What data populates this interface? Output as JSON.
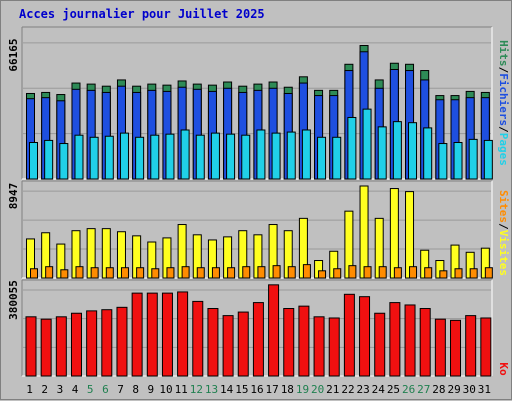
{
  "title": "Acces journalier pour Juillet 2025",
  "colors": {
    "hits": "#2e8b57",
    "files": "#1e4fe0",
    "pages": "#20d0e8",
    "visits": "#ffff20",
    "sites": "#ff8c00",
    "kbytes": "#f01010",
    "weekend_label": "#208050",
    "weekday_label": "#000000",
    "panel": "#c0c0c0"
  },
  "chart_data": [
    {
      "type": "bar",
      "title": "Acces journalier pour Juillet 2025",
      "categories": [
        "1",
        "2",
        "3",
        "4",
        "5",
        "6",
        "7",
        "8",
        "9",
        "10",
        "11",
        "12",
        "13",
        "14",
        "15",
        "16",
        "17",
        "18",
        "19",
        "20",
        "21",
        "22",
        "23",
        "24",
        "25",
        "26",
        "27",
        "28",
        "29",
        "30",
        "31"
      ],
      "weekend_days": [
        "5",
        "6",
        "12",
        "13",
        "19",
        "20",
        "26",
        "27"
      ],
      "y_tick": "66165",
      "ylim": [
        0,
        66165
      ],
      "legend": [
        "Hits",
        "Fichiers",
        "Pages"
      ],
      "legend_separator": "/",
      "legend_placement": "right",
      "series": [
        {
          "name": "Hits",
          "values": [
            41000,
            41500,
            40500,
            46000,
            45500,
            44500,
            47500,
            44500,
            45500,
            45000,
            47000,
            45500,
            45000,
            46500,
            44500,
            45500,
            46500,
            44000,
            49000,
            42500,
            42500,
            55000,
            64000,
            47500,
            55500,
            55000,
            52000,
            40000,
            40000,
            42000,
            41500
          ]
        },
        {
          "name": "Fichiers",
          "values": [
            38500,
            39000,
            37500,
            43000,
            42500,
            41500,
            44500,
            41500,
            42500,
            42000,
            44000,
            43000,
            42000,
            43500,
            41500,
            42500,
            43500,
            41000,
            46000,
            40000,
            40000,
            52000,
            61000,
            43500,
            52500,
            52000,
            47500,
            38000,
            38000,
            39000,
            39000
          ]
        },
        {
          "name": "Pages",
          "values": [
            17500,
            18500,
            17000,
            21000,
            20000,
            20500,
            22000,
            20000,
            21000,
            21500,
            23500,
            21000,
            22000,
            21500,
            21000,
            23500,
            22000,
            22500,
            23500,
            20000,
            20000,
            29500,
            33500,
            25000,
            27500,
            27000,
            24500,
            17000,
            17500,
            19000,
            18500
          ]
        }
      ]
    },
    {
      "type": "bar",
      "categories": [
        "1",
        "2",
        "3",
        "4",
        "5",
        "6",
        "7",
        "8",
        "9",
        "10",
        "11",
        "12",
        "13",
        "14",
        "15",
        "16",
        "17",
        "18",
        "19",
        "20",
        "21",
        "22",
        "23",
        "24",
        "25",
        "26",
        "27",
        "28",
        "29",
        "30",
        "31"
      ],
      "y_tick": "8947",
      "ylim": [
        0,
        8947
      ],
      "legend": [
        "Sites",
        "Visites"
      ],
      "legend_separator": "/",
      "legend_placement": "right",
      "series": [
        {
          "name": "Visites",
          "values": [
            3800,
            4400,
            3300,
            4600,
            4800,
            4800,
            4500,
            4100,
            3500,
            3900,
            5200,
            4200,
            3700,
            4000,
            4600,
            4200,
            5200,
            4600,
            5800,
            1700,
            2600,
            6500,
            8947,
            5800,
            8700,
            8400,
            2700,
            1700,
            3200,
            2500,
            2900
          ]
        },
        {
          "name": "Sites",
          "values": [
            900,
            1100,
            800,
            1100,
            1000,
            1000,
            1000,
            1000,
            900,
            1000,
            1100,
            1000,
            1000,
            1000,
            1100,
            1100,
            1200,
            1100,
            1300,
            700,
            900,
            1200,
            1100,
            1100,
            1000,
            1100,
            1000,
            700,
            900,
            900,
            1000
          ]
        }
      ]
    },
    {
      "type": "bar",
      "categories": [
        "1",
        "2",
        "3",
        "4",
        "5",
        "6",
        "7",
        "8",
        "9",
        "10",
        "11",
        "12",
        "13",
        "14",
        "15",
        "16",
        "17",
        "18",
        "19",
        "20",
        "21",
        "22",
        "23",
        "24",
        "25",
        "26",
        "27",
        "28",
        "29",
        "30",
        "31"
      ],
      "y_tick": "380055",
      "ylim": [
        0,
        380055
      ],
      "legend": [
        "Ko"
      ],
      "legend_placement": "right",
      "series": [
        {
          "name": "Ko",
          "values": [
            250000,
            240000,
            250000,
            265000,
            275000,
            280000,
            290000,
            350000,
            350000,
            350000,
            355000,
            315000,
            285000,
            255000,
            270000,
            310000,
            385000,
            285000,
            295000,
            250000,
            245000,
            345000,
            335000,
            265000,
            310000,
            300000,
            285000,
            240000,
            235000,
            255000,
            245000
          ]
        }
      ]
    }
  ]
}
